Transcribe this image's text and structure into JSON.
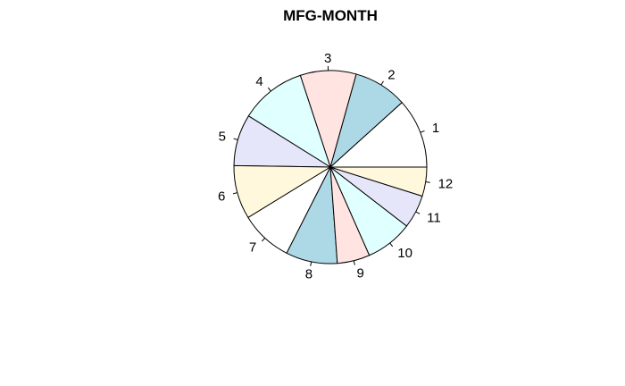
{
  "chart_data": {
    "type": "pie",
    "title": "MFG-MONTH",
    "labels": [
      "1",
      "2",
      "3",
      "4",
      "5",
      "6",
      "7",
      "8",
      "9",
      "10",
      "11",
      "12"
    ],
    "values": [
      9.6,
      7.4,
      7.7,
      9.1,
      7.1,
      7.4,
      7.2,
      7.1,
      4.5,
      6.5,
      4.6,
      4.0
    ],
    "colors": [
      "#ffffff",
      "#add8e6",
      "#ffe4e1",
      "#e0ffff",
      "#e6e6fa",
      "#fff8dc",
      "#ffffff",
      "#add8e6",
      "#ffe4e1",
      "#e0ffff",
      "#e6e6fa",
      "#fff8dc"
    ],
    "start_angle_deg": 0,
    "direction": "counterclockwise"
  }
}
